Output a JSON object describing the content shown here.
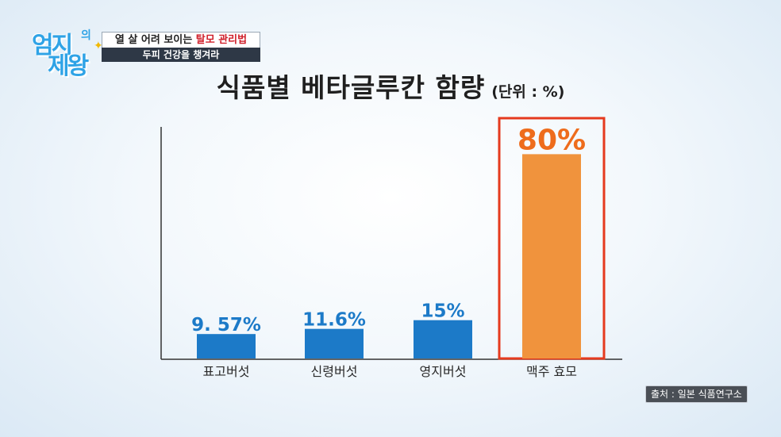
{
  "logo": {
    "line1": "엄지",
    "small": "의",
    "line2": "제왕"
  },
  "caption": {
    "line1_prefix": "열 살 어려 보이는 ",
    "line1_highlight": "탈모 관리법",
    "line2": "두피 건강을 챙겨라"
  },
  "title": {
    "main": "식품별 베타글루칸 함량",
    "unit": "(단위 : %)"
  },
  "source": "출처 : 일본 식품연구소",
  "colors": {
    "bar_default": "#1c7ac8",
    "bar_highlight": "#f0933d",
    "label_default": "#1c7ac8",
    "label_highlight": "#ee6c1c",
    "highlight_box": "#e53a1e"
  },
  "chart_data": {
    "type": "bar",
    "title": "식품별 베타글루칸 함량",
    "unit": "(단위 : %)",
    "categories": [
      "표고버섯",
      "신령버섯",
      "영지버섯",
      "맥주 효모"
    ],
    "values": [
      9.57,
      11.6,
      15,
      80
    ],
    "value_labels": [
      "9. 57%",
      "11.6%",
      "15%",
      "80%"
    ],
    "highlight_index": 3,
    "ylim": [
      0,
      100
    ],
    "grid": false,
    "legend": "none"
  }
}
